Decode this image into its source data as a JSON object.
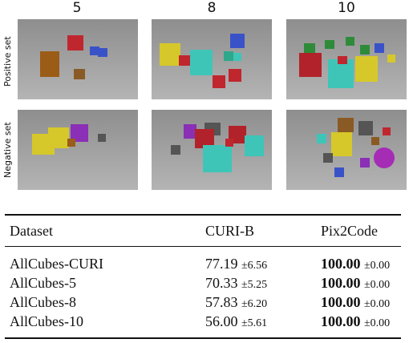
{
  "figure": {
    "column_headers": [
      "5",
      "8",
      "10"
    ],
    "row_labels": [
      "Positive set",
      "Negative set"
    ]
  },
  "table": {
    "headers": [
      "Dataset",
      "CURI-B",
      "Pix2Code"
    ],
    "rows": [
      {
        "dataset": "AllCubes-CURI",
        "curi_value": "77.19",
        "curi_std": "±6.56",
        "pix_value": "100.00",
        "pix_std": "±0.00"
      },
      {
        "dataset": "AllCubes-5",
        "curi_value": "70.33",
        "curi_std": "±5.25",
        "pix_value": "100.00",
        "pix_std": "±0.00"
      },
      {
        "dataset": "AllCubes-8",
        "curi_value": "57.83",
        "curi_std": "±6.20",
        "pix_value": "100.00",
        "pix_std": "±0.00"
      },
      {
        "dataset": "AllCubes-10",
        "curi_value": "56.00",
        "curi_std": "±5.61",
        "pix_value": "100.00",
        "pix_std": "±0.00"
      }
    ]
  }
}
